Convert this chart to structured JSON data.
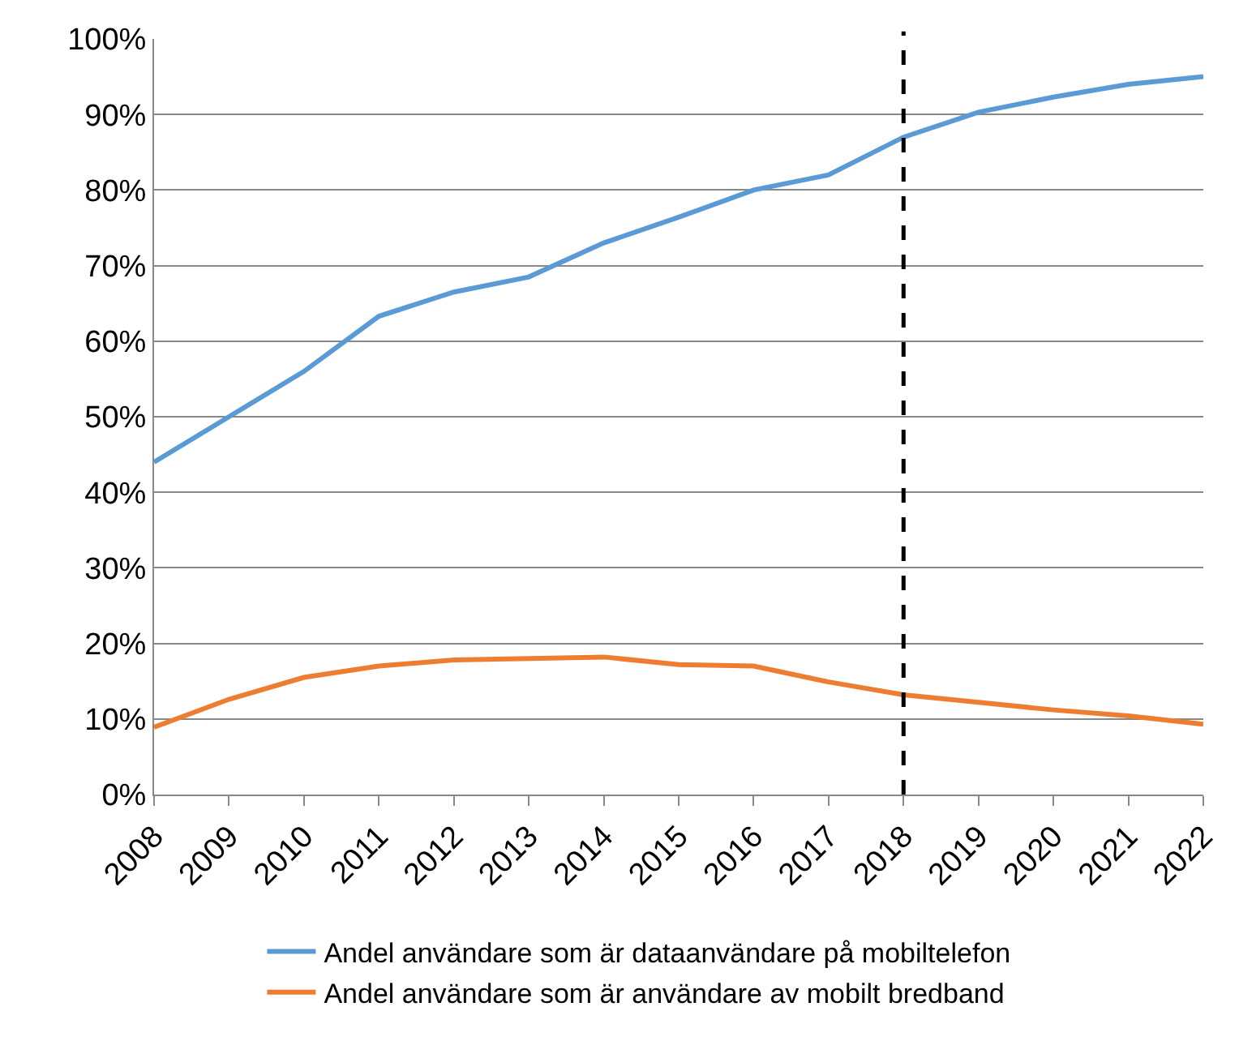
{
  "chart_data": {
    "type": "line",
    "x": [
      2008,
      2009,
      2010,
      2011,
      2012,
      2013,
      2014,
      2015,
      2016,
      2017,
      2018,
      2019,
      2020,
      2021,
      2022
    ],
    "series": [
      {
        "name": "Andel användare som är dataanvändare på mobiltelefon",
        "color": "#5b9bd5",
        "values": [
          44,
          50,
          56,
          63.3,
          66.5,
          68.5,
          73,
          76.4,
          80,
          82,
          87,
          90.3,
          92.3,
          94,
          95
        ]
      },
      {
        "name": "Andel användare som är användare av mobilt bredband",
        "color": "#ed7d31",
        "values": [
          8.9,
          12.6,
          15.5,
          17,
          17.8,
          18,
          18.2,
          17.2,
          17,
          14.9,
          13.2,
          12.2,
          11.2,
          10.4,
          9.3
        ]
      }
    ],
    "xlim": [
      2008,
      2022
    ],
    "xticks": [
      2008,
      2009,
      2010,
      2011,
      2012,
      2013,
      2014,
      2015,
      2016,
      2017,
      2018,
      2019,
      2020,
      2021,
      2022
    ],
    "ylim": [
      0,
      100
    ],
    "yticks": [
      {
        "value": 0,
        "label": "0%"
      },
      {
        "value": 10,
        "label": "10%"
      },
      {
        "value": 20,
        "label": "20%"
      },
      {
        "value": 30,
        "label": "30%"
      },
      {
        "value": 40,
        "label": "40%"
      },
      {
        "value": 50,
        "label": "50%"
      },
      {
        "value": 60,
        "label": "60%"
      },
      {
        "value": 70,
        "label": "70%"
      },
      {
        "value": 80,
        "label": "80%"
      },
      {
        "value": 90,
        "label": "90%"
      },
      {
        "value": 100,
        "label": "100%"
      }
    ],
    "ref_lines": [
      {
        "axis": "x",
        "value": 2018,
        "color": "#000000",
        "line_style": "dashed"
      }
    ],
    "grid": "y",
    "legend": "bottom",
    "marker": "none",
    "line_style": "solid"
  }
}
